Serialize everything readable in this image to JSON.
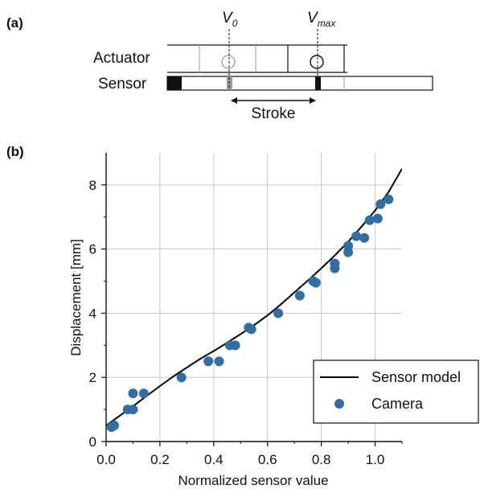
{
  "panel_a": {
    "label": "(a)",
    "actuator_label": "Actuator",
    "sensor_label": "Sensor",
    "v0_symbol": "V",
    "v0_sub": "0",
    "vmax_symbol": "V",
    "vmax_sub": "max",
    "stroke_label": "Stroke"
  },
  "panel_b": {
    "label": "(b)"
  },
  "chart_data": {
    "type": "scatter",
    "xlabel": "Normalized sensor value",
    "ylabel": "Displacement [mm]",
    "xlim": [
      0.0,
      1.1
    ],
    "ylim": [
      0,
      9
    ],
    "xticks": [
      0.0,
      0.2,
      0.4,
      0.6,
      0.8,
      1.0
    ],
    "xtick_labels": [
      "0.0",
      "0.2",
      "0.4",
      "0.6",
      "0.8",
      "1.0"
    ],
    "yticks": [
      0,
      2,
      4,
      6,
      8
    ],
    "ytick_labels": [
      "0",
      "2",
      "4",
      "6",
      "8"
    ],
    "grid": true,
    "legend_placement": "bottom-right",
    "series": [
      {
        "name": "Sensor model",
        "kind": "line",
        "color": "#000000",
        "x": [
          0.0,
          0.05,
          0.1,
          0.15,
          0.2,
          0.25,
          0.3,
          0.35,
          0.4,
          0.45,
          0.5,
          0.55,
          0.6,
          0.65,
          0.7,
          0.75,
          0.8,
          0.85,
          0.9,
          0.95,
          1.0,
          1.05,
          1.1
        ],
        "y": [
          0.5,
          0.8,
          1.1,
          1.42,
          1.73,
          2.03,
          2.31,
          2.58,
          2.82,
          3.08,
          3.35,
          3.63,
          3.93,
          4.28,
          4.65,
          5.02,
          5.4,
          5.8,
          6.23,
          6.7,
          7.2,
          7.78,
          8.5
        ]
      },
      {
        "name": "Camera",
        "kind": "scatter",
        "color": "#2f6ea6",
        "x": [
          0.02,
          0.03,
          0.08,
          0.1,
          0.1,
          0.14,
          0.28,
          0.38,
          0.42,
          0.46,
          0.48,
          0.53,
          0.54,
          0.64,
          0.72,
          0.77,
          0.78,
          0.85,
          0.85,
          0.9,
          0.9,
          0.93,
          0.96,
          0.98,
          1.01,
          1.02,
          1.05
        ],
        "y": [
          0.45,
          0.5,
          1.0,
          1.0,
          1.5,
          1.5,
          2.0,
          2.5,
          2.5,
          3.0,
          3.0,
          3.55,
          3.5,
          4.0,
          4.55,
          5.0,
          4.95,
          5.4,
          5.55,
          5.9,
          6.1,
          6.4,
          6.35,
          6.9,
          6.95,
          7.4,
          7.55
        ]
      }
    ]
  }
}
